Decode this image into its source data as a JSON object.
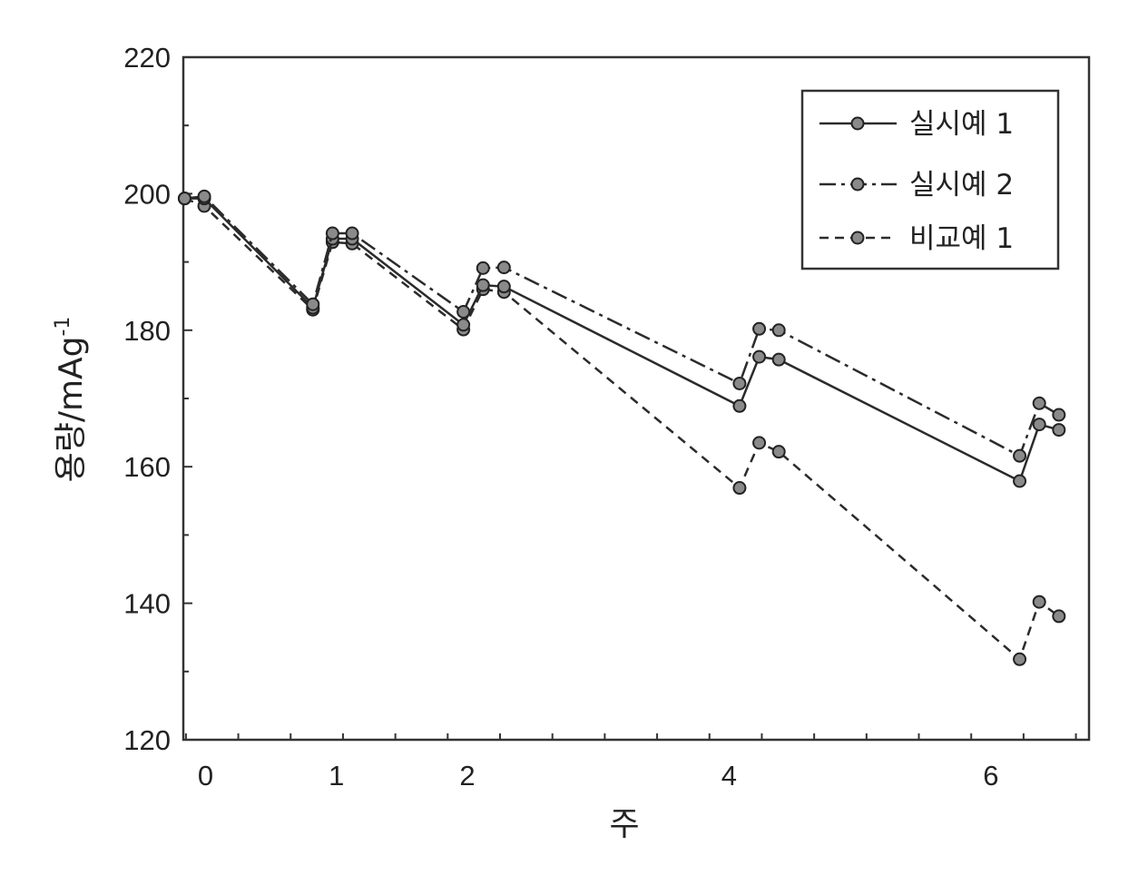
{
  "chart_data": {
    "type": "line",
    "title": "",
    "xlabel": "주",
    "ylabel": "용량/mAg",
    "ylabel_superscript": "-1",
    "xlim": [
      -0.17,
      6.75
    ],
    "ylim": [
      120,
      220
    ],
    "yticks": [
      120,
      140,
      160,
      180,
      200,
      220
    ],
    "xticks": [
      0,
      1,
      2,
      4,
      6
    ],
    "xtick_labels": [
      "0",
      "1",
      "2",
      "4",
      "6"
    ],
    "grid": false,
    "legend_position": "top-right",
    "series": [
      {
        "name": "실시예 1",
        "style": "solid",
        "color": "#2b2b2b",
        "x": [
          -0.16,
          -0.01,
          0.82,
          0.97,
          1.12,
          1.97,
          2.12,
          2.28,
          4.08,
          4.23,
          4.38,
          6.22,
          6.37,
          6.52
        ],
        "y": [
          199.3,
          199.3,
          183.3,
          193.4,
          193.4,
          180.8,
          186.6,
          186.4,
          168.9,
          176.1,
          175.7,
          157.9,
          166.2,
          165.4
        ]
      },
      {
        "name": "실시예 2",
        "style": "dash-dot",
        "color": "#2b2b2b",
        "x": [
          -0.16,
          -0.01,
          0.82,
          0.97,
          1.12,
          1.97,
          2.12,
          2.28,
          4.08,
          4.23,
          4.38,
          6.22,
          6.37,
          6.52
        ],
        "y": [
          199.3,
          199.6,
          183.8,
          194.2,
          194.2,
          182.7,
          189.1,
          189.2,
          172.2,
          180.2,
          180.0,
          161.6,
          169.3,
          167.6
        ]
      },
      {
        "name": "비교예 1",
        "style": "dashed",
        "color": "#2b2b2b",
        "x": [
          -0.16,
          -0.01,
          0.82,
          0.97,
          1.12,
          1.97,
          2.12,
          2.28,
          4.08,
          4.23,
          4.38,
          6.22,
          6.37,
          6.52
        ],
        "y": [
          199.3,
          198.2,
          183.0,
          192.9,
          192.7,
          180.1,
          186.0,
          185.6,
          156.9,
          163.5,
          162.2,
          131.8,
          140.2,
          138.1
        ]
      }
    ]
  }
}
